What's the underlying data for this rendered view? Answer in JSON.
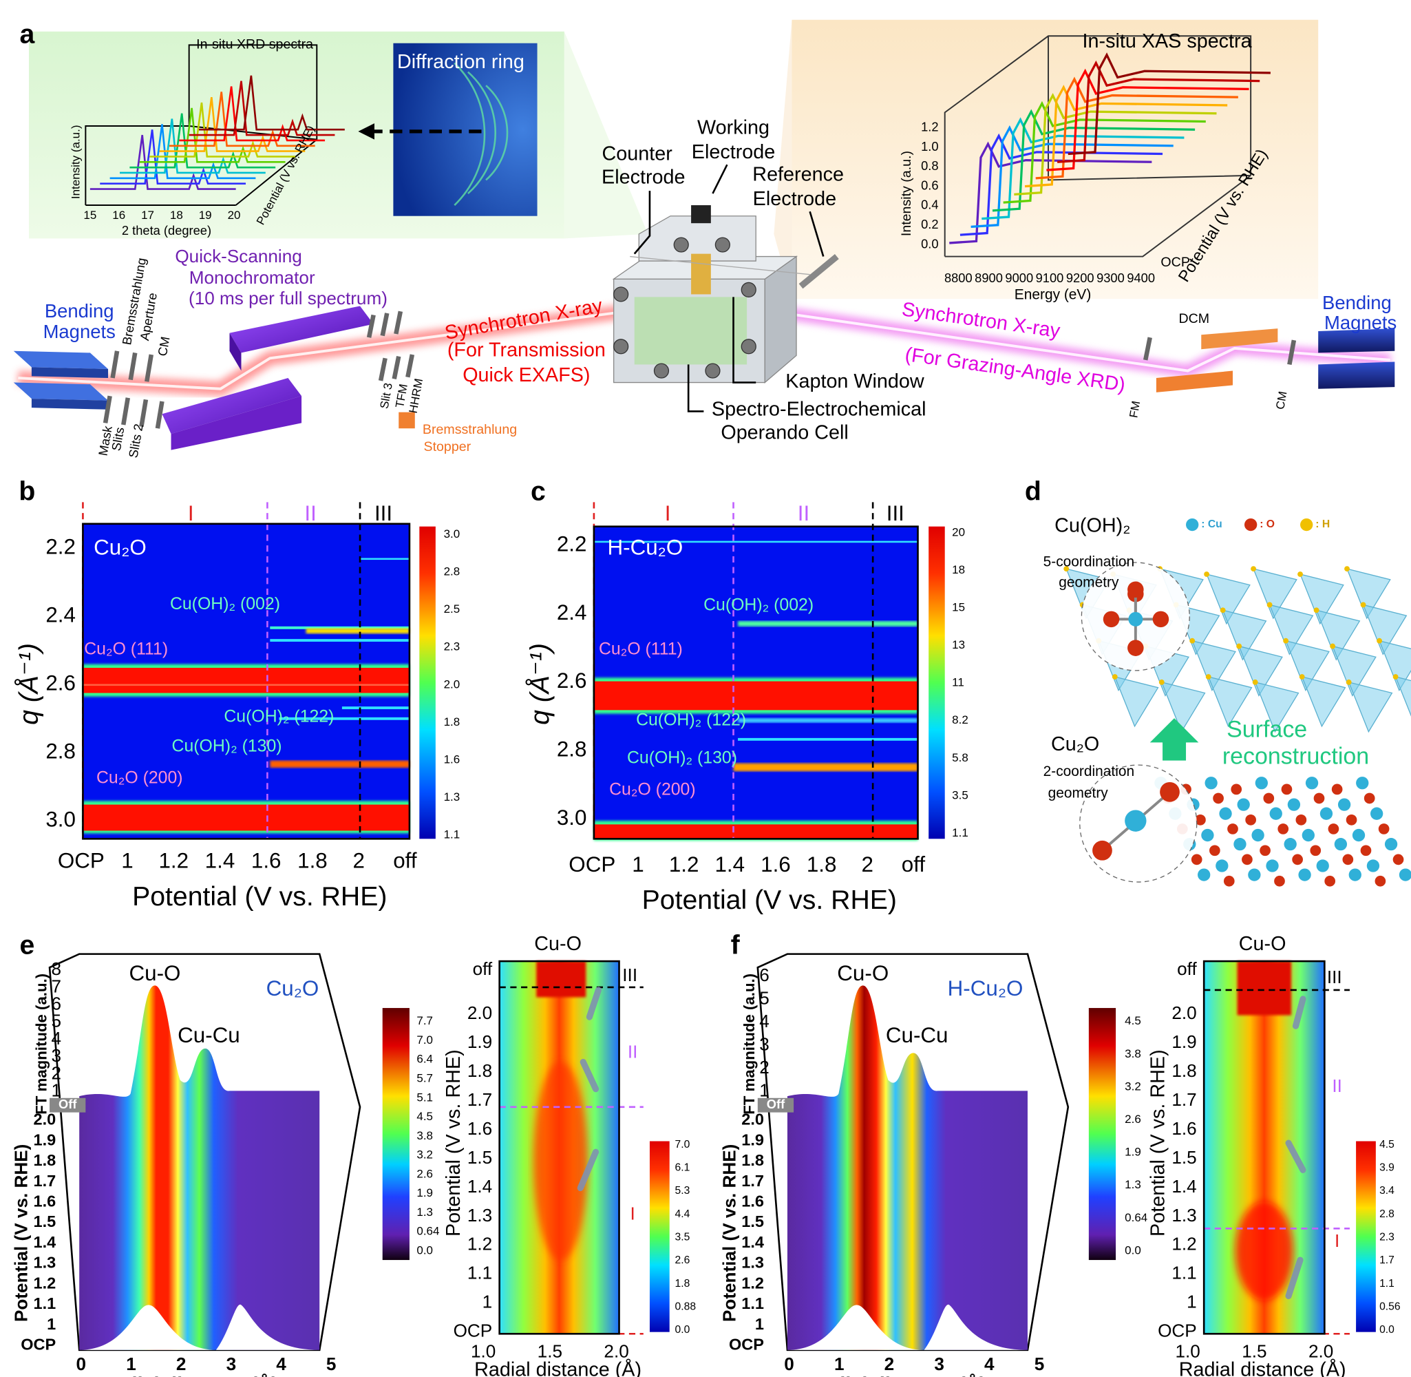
{
  "panel_a": {
    "label": "a",
    "xrd": {
      "title": "In-situ XRD spectra",
      "x_label": "2 theta (degree)",
      "y_label": "Intensity (a.u.)",
      "z_label": "Potential (V vs. RHE)",
      "x_ticks": [
        "15",
        "16",
        "17",
        "18",
        "19",
        "20"
      ]
    },
    "diffraction": "Diffraction ring",
    "xas": {
      "title": "In-situ XAS spectra",
      "x_label": "Energy (eV)",
      "y_label": "Intensity (a.u.)",
      "z_label": "Potential (V vs. RHE)",
      "x_ticks": [
        "8800",
        "8900",
        "9000",
        "9100",
        "9200",
        "9300",
        "9400"
      ],
      "y_ticks": [
        "0.0",
        "0.2",
        "0.4",
        "0.6",
        "0.8",
        "1.0",
        "1.2"
      ],
      "z_first": "OCP"
    },
    "working": [
      "Working",
      "Electrode"
    ],
    "counter": [
      "Counter",
      "Electrode"
    ],
    "reference": [
      "Reference",
      "Electrode"
    ],
    "window": "Kapton Window",
    "cell": [
      "Spectro-Electrochemical",
      "Operando Cell"
    ],
    "mono": [
      "Quick-Scanning",
      "Monochromator",
      "(10 ms per full spectrum)"
    ],
    "magnets_left": [
      "Bending",
      "Magnets"
    ],
    "magnets_right": [
      "Bending",
      "Magnets"
    ],
    "beam_left": [
      "Synchrotron X-ray",
      "(For Transmission",
      "Quick EXAFS)"
    ],
    "beam_right": [
      "Synchrotron X-ray",
      "(For Grazing-Angle XRD)"
    ],
    "optics_left": [
      "Bremsstrahlung",
      "Aperture",
      "CM",
      "Mask",
      "Slits",
      "Slits 2"
    ],
    "optics_mid": [
      "Slit 3",
      "TFM",
      "HHRM"
    ],
    "stopper": [
      "Bremsstrahlung",
      "Stopper"
    ],
    "optics_right": [
      "DCM",
      "FM",
      "CM"
    ]
  },
  "panel_b": {
    "label": "b",
    "sample": "Cu₂O",
    "regions": [
      "I",
      "II",
      "III"
    ],
    "y_label": "q (Å⁻¹)",
    "x_label": "Potential (V vs. RHE)",
    "y_ticks": [
      "2.2",
      "2.4",
      "2.6",
      "2.8",
      "3.0"
    ],
    "x_ticks": [
      "OCP",
      "1",
      "1.2",
      "1.4",
      "1.6",
      "1.8",
      "2",
      "off"
    ],
    "peaks": [
      "Cu(OH)₂ (002)",
      "Cu₂O (111)",
      "Cu(OH)₂ (122)",
      "Cu(OH)₂ (130)",
      "Cu₂O (200)"
    ],
    "colorbar": [
      "3.0",
      "2.8",
      "2.5",
      "2.3",
      "2.0",
      "1.8",
      "1.6",
      "1.3",
      "1.1"
    ]
  },
  "panel_c": {
    "label": "c",
    "sample": "H-Cu₂O",
    "regions": [
      "I",
      "II",
      "III"
    ],
    "y_label": "q (Å⁻¹)",
    "x_label": "Potential (V vs. RHE)",
    "y_ticks": [
      "2.2",
      "2.4",
      "2.6",
      "2.8",
      "3.0"
    ],
    "x_ticks": [
      "OCP",
      "1",
      "1.2",
      "1.4",
      "1.6",
      "1.8",
      "2",
      "off"
    ],
    "peaks": [
      "Cu(OH)₂ (002)",
      "Cu₂O (111)",
      "Cu(OH)₂ (122)",
      "Cu(OH)₂ (130)",
      "Cu₂O (200)"
    ],
    "colorbar": [
      "20",
      "18",
      "15",
      "13",
      "11",
      "8.2",
      "5.8",
      "3.5",
      "1.1"
    ]
  },
  "panel_d": {
    "label": "d",
    "top": "Cu(OH)₂",
    "top_geometry": [
      "5-coordination",
      "geometry"
    ],
    "bottom": "Cu₂O",
    "bottom_geometry": [
      "2-coordination",
      "geometry"
    ],
    "legend": [
      ": Cu",
      ": O",
      ": H"
    ],
    "arrow": [
      "Surface",
      "reconstruction"
    ]
  },
  "panel_e": {
    "label": "e",
    "surface": {
      "peaks": [
        "Cu-O",
        "Cu-Cu"
      ],
      "sample": "Cu₂O",
      "y_label": "FT magnitude (a.u.)",
      "y_ticks": [
        "8",
        "7",
        "6",
        "5",
        "4",
        "3",
        "2",
        "1"
      ],
      "off": "Off",
      "potential_label": "Potential (V vs. RHE)",
      "potential_ticks": [
        "2.0",
        "1.9",
        "1.8",
        "1.7",
        "1.6",
        "1.5",
        "1.4",
        "1.3",
        "1.2",
        "1.1",
        "1",
        "OCP"
      ],
      "x_label": "Radial distance (Å)",
      "x_ticks": [
        "0",
        "1",
        "2",
        "3",
        "4",
        "5"
      ],
      "colorbar": [
        "7.7",
        "7.0",
        "6.4",
        "5.7",
        "5.1",
        "4.5",
        "3.8",
        "3.2",
        "2.6",
        "1.9",
        "1.3",
        "0.64",
        "0.0"
      ]
    },
    "map": {
      "title": "Cu-O",
      "y_label": "Potential (V vs. RHE)",
      "y_ticks": [
        "off",
        "2.0",
        "1.9",
        "1.8",
        "1.7",
        "1.6",
        "1.5",
        "1.4",
        "1.3",
        "1.2",
        "1.1",
        "1",
        "OCP"
      ],
      "x_label": "Radial distance (Å)",
      "x_ticks": [
        "1.0",
        "1.5",
        "2.0"
      ],
      "regions": [
        "I",
        "II",
        "III"
      ],
      "colorbar": [
        "7.0",
        "6.1",
        "5.3",
        "4.4",
        "3.5",
        "2.6",
        "1.8",
        "0.88",
        "0.0"
      ]
    }
  },
  "panel_f": {
    "label": "f",
    "surface": {
      "peaks": [
        "Cu-O",
        "Cu-Cu"
      ],
      "sample": "H-Cu₂O",
      "y_label": "FT magnitude (a.u.)",
      "y_ticks": [
        "6",
        "5",
        "4",
        "3",
        "2",
        "1"
      ],
      "off": "Off",
      "potential_label": "Potential (V vs. RHE)",
      "potential_ticks": [
        "2.0",
        "1.9",
        "1.8",
        "1.7",
        "1.6",
        "1.5",
        "1.4",
        "1.3",
        "1.2",
        "1.1",
        "1",
        "OCP"
      ],
      "x_label": "Radial distance (Å)",
      "x_ticks": [
        "0",
        "1",
        "2",
        "3",
        "4",
        "5"
      ],
      "colorbar": [
        "4.5",
        "3.8",
        "3.2",
        "2.6",
        "1.9",
        "1.3",
        "0.64",
        "0.0"
      ]
    },
    "map": {
      "title": "Cu-O",
      "y_label": "Potential (V vs. RHE)",
      "y_ticks": [
        "off",
        "2.0",
        "1.9",
        "1.8",
        "1.7",
        "1.6",
        "1.5",
        "1.4",
        "1.3",
        "1.2",
        "1.1",
        "1",
        "OCP"
      ],
      "x_label": "Radial distance (Å)",
      "x_ticks": [
        "1.0",
        "1.5",
        "2.0"
      ],
      "regions": [
        "I",
        "II",
        "III"
      ],
      "colorbar": [
        "4.5",
        "3.9",
        "3.4",
        "2.8",
        "2.3",
        "1.7",
        "1.1",
        "0.56",
        "0.0"
      ]
    }
  }
}
